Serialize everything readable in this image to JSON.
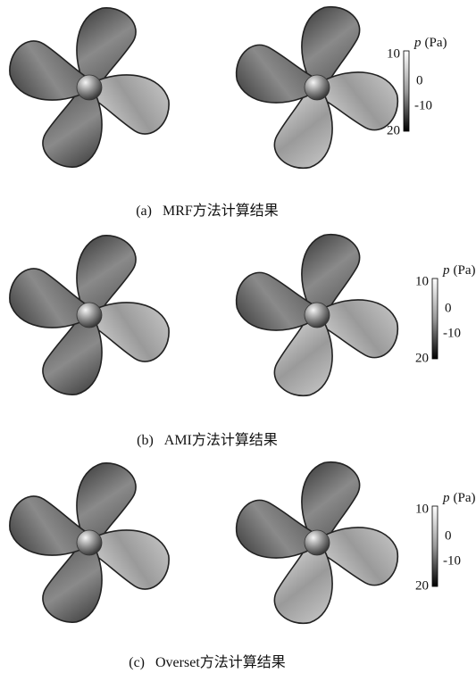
{
  "figure": {
    "panels": [
      {
        "label": "(a)",
        "caption": "MRF方法计算结果",
        "colorbar": {
          "symbol": "p",
          "unit": "(Pa)",
          "ticks": [
            "10",
            "0",
            "-10",
            "20"
          ]
        }
      },
      {
        "label": "(b)",
        "caption": "AMI方法计算结果",
        "colorbar": {
          "symbol": "p",
          "unit": "(Pa)",
          "ticks": [
            "10",
            "0",
            "-10",
            "20"
          ]
        }
      },
      {
        "label": "(c)",
        "caption": "Overset方法计算结果",
        "colorbar": {
          "symbol": "p",
          "unit": "(Pa)",
          "ticks": [
            "10",
            "0",
            "-10",
            "20"
          ]
        }
      }
    ]
  }
}
